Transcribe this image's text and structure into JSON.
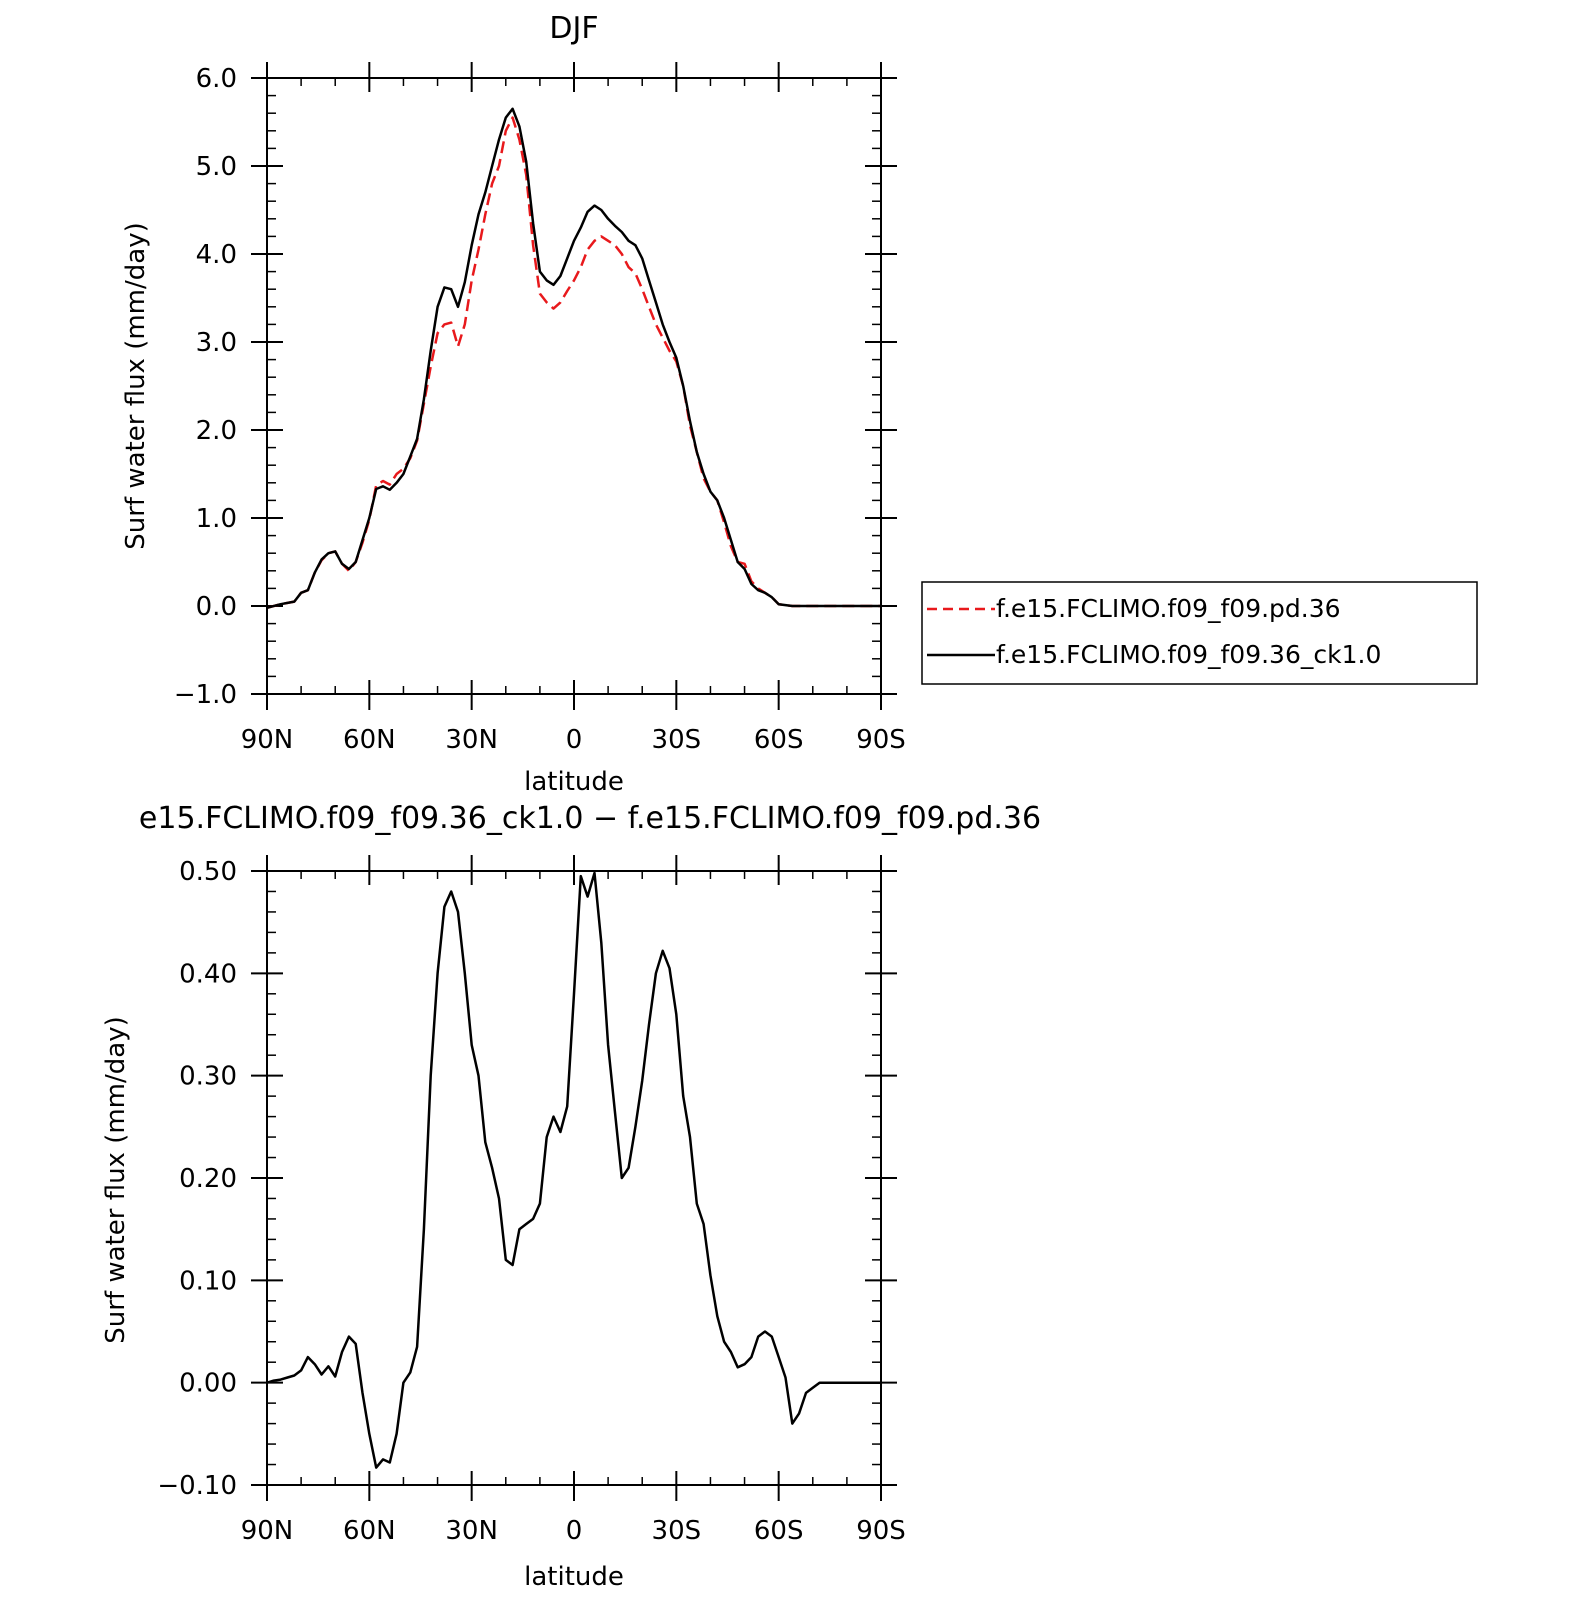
{
  "chart_data": [
    {
      "type": "line",
      "title": "DJF",
      "xlabel": "latitude",
      "ylabel": "Surf water flux (mm/day)",
      "xlim": [
        90,
        -90
      ],
      "ylim": [
        -1.0,
        6.0
      ],
      "x_ticks": [
        {
          "value": 90,
          "label": "90N"
        },
        {
          "value": 60,
          "label": "60N"
        },
        {
          "value": 30,
          "label": "30N"
        },
        {
          "value": 0,
          "label": "0"
        },
        {
          "value": -30,
          "label": "30S"
        },
        {
          "value": -60,
          "label": "60S"
        },
        {
          "value": -90,
          "label": "90S"
        }
      ],
      "y_ticks": [
        {
          "value": -1.0,
          "label": "−1.0"
        },
        {
          "value": 0.0,
          "label": "0.0"
        },
        {
          "value": 1.0,
          "label": "1.0"
        },
        {
          "value": 2.0,
          "label": "2.0"
        },
        {
          "value": 3.0,
          "label": "3.0"
        },
        {
          "value": 4.0,
          "label": "4.0"
        },
        {
          "value": 5.0,
          "label": "5.0"
        },
        {
          "value": 6.0,
          "label": "6.0"
        }
      ],
      "legend_placement": "right",
      "series": [
        {
          "name": "f.e15.FCLIMO.f09_f09.pd.36",
          "color": "#e8191c",
          "dash": "dashed",
          "points": [
            [
              90,
              -0.02
            ],
            [
              86,
              0.02
            ],
            [
              82,
              0.05
            ],
            [
              80,
              0.15
            ],
            [
              78,
              0.18
            ],
            [
              76,
              0.38
            ],
            [
              74,
              0.52
            ],
            [
              72,
              0.6
            ],
            [
              70,
              0.62
            ],
            [
              68,
              0.48
            ],
            [
              66,
              0.4
            ],
            [
              64,
              0.5
            ],
            [
              62,
              0.72
            ],
            [
              60,
              0.98
            ],
            [
              58,
              1.37
            ],
            [
              56,
              1.42
            ],
            [
              54,
              1.38
            ],
            [
              52,
              1.5
            ],
            [
              50,
              1.56
            ],
            [
              48,
              1.68
            ],
            [
              46,
              1.88
            ],
            [
              44,
              2.3
            ],
            [
              42,
              2.72
            ],
            [
              40,
              3.1
            ],
            [
              38,
              3.2
            ],
            [
              36,
              3.22
            ],
            [
              34,
              2.95
            ],
            [
              32,
              3.2
            ],
            [
              30,
              3.7
            ],
            [
              28,
              4.05
            ],
            [
              26,
              4.45
            ],
            [
              24,
              4.8
            ],
            [
              22,
              5.0
            ],
            [
              20,
              5.4
            ],
            [
              18,
              5.55
            ],
            [
              16,
              5.3
            ],
            [
              14,
              4.9
            ],
            [
              12,
              4.1
            ],
            [
              10,
              3.55
            ],
            [
              8,
              3.45
            ],
            [
              6,
              3.38
            ],
            [
              4,
              3.45
            ],
            [
              2,
              3.58
            ],
            [
              0,
              3.7
            ],
            [
              -2,
              3.85
            ],
            [
              -4,
              4.05
            ],
            [
              -6,
              4.15
            ],
            [
              -8,
              4.2
            ],
            [
              -10,
              4.15
            ],
            [
              -12,
              4.1
            ],
            [
              -14,
              4.0
            ],
            [
              -16,
              3.85
            ],
            [
              -18,
              3.78
            ],
            [
              -20,
              3.6
            ],
            [
              -22,
              3.4
            ],
            [
              -24,
              3.2
            ],
            [
              -26,
              3.05
            ],
            [
              -28,
              2.9
            ],
            [
              -30,
              2.78
            ],
            [
              -32,
              2.5
            ],
            [
              -34,
              2.05
            ],
            [
              -36,
              1.75
            ],
            [
              -38,
              1.45
            ],
            [
              -40,
              1.3
            ],
            [
              -42,
              1.2
            ],
            [
              -44,
              0.95
            ],
            [
              -46,
              0.68
            ],
            [
              -48,
              0.5
            ],
            [
              -50,
              0.48
            ],
            [
              -52,
              0.28
            ],
            [
              -54,
              0.2
            ],
            [
              -56,
              0.15
            ],
            [
              -58,
              0.1
            ],
            [
              -60,
              0.02
            ],
            [
              -64,
              0.0
            ],
            [
              -70,
              0.0
            ],
            [
              -80,
              0.0
            ],
            [
              -90,
              0.0
            ]
          ]
        },
        {
          "name": "f.e15.FCLIMO.f09_f09.36_ck1.0",
          "color": "#000000",
          "dash": "solid",
          "points": [
            [
              90,
              -0.02
            ],
            [
              86,
              0.02
            ],
            [
              82,
              0.05
            ],
            [
              80,
              0.15
            ],
            [
              78,
              0.18
            ],
            [
              76,
              0.38
            ],
            [
              74,
              0.53
            ],
            [
              72,
              0.6
            ],
            [
              70,
              0.62
            ],
            [
              68,
              0.48
            ],
            [
              66,
              0.42
            ],
            [
              64,
              0.5
            ],
            [
              62,
              0.75
            ],
            [
              60,
              1.0
            ],
            [
              58,
              1.33
            ],
            [
              56,
              1.36
            ],
            [
              54,
              1.32
            ],
            [
              52,
              1.4
            ],
            [
              50,
              1.5
            ],
            [
              48,
              1.7
            ],
            [
              46,
              1.9
            ],
            [
              44,
              2.35
            ],
            [
              42,
              2.9
            ],
            [
              40,
              3.4
            ],
            [
              38,
              3.62
            ],
            [
              36,
              3.6
            ],
            [
              34,
              3.4
            ],
            [
              32,
              3.68
            ],
            [
              30,
              4.1
            ],
            [
              28,
              4.45
            ],
            [
              26,
              4.7
            ],
            [
              24,
              5.0
            ],
            [
              22,
              5.3
            ],
            [
              20,
              5.55
            ],
            [
              18,
              5.65
            ],
            [
              16,
              5.45
            ],
            [
              14,
              5.05
            ],
            [
              12,
              4.35
            ],
            [
              10,
              3.8
            ],
            [
              8,
              3.7
            ],
            [
              6,
              3.65
            ],
            [
              4,
              3.75
            ],
            [
              2,
              3.95
            ],
            [
              0,
              4.15
            ],
            [
              -2,
              4.3
            ],
            [
              -4,
              4.48
            ],
            [
              -6,
              4.55
            ],
            [
              -8,
              4.5
            ],
            [
              -10,
              4.4
            ],
            [
              -12,
              4.32
            ],
            [
              -14,
              4.25
            ],
            [
              -16,
              4.15
            ],
            [
              -18,
              4.1
            ],
            [
              -20,
              3.95
            ],
            [
              -22,
              3.7
            ],
            [
              -24,
              3.45
            ],
            [
              -26,
              3.2
            ],
            [
              -28,
              3.0
            ],
            [
              -30,
              2.82
            ],
            [
              -32,
              2.5
            ],
            [
              -34,
              2.1
            ],
            [
              -36,
              1.75
            ],
            [
              -38,
              1.5
            ],
            [
              -40,
              1.3
            ],
            [
              -42,
              1.2
            ],
            [
              -44,
              1.0
            ],
            [
              -46,
              0.75
            ],
            [
              -48,
              0.5
            ],
            [
              -50,
              0.42
            ],
            [
              -52,
              0.25
            ],
            [
              -54,
              0.18
            ],
            [
              -56,
              0.15
            ],
            [
              -58,
              0.1
            ],
            [
              -60,
              0.02
            ],
            [
              -64,
              0.0
            ],
            [
              -70,
              0.0
            ],
            [
              -80,
              0.0
            ],
            [
              -90,
              0.0
            ]
          ]
        }
      ]
    },
    {
      "type": "line",
      "title": "e15.FCLIMO.f09_f09.36_ck1.0 − f.e15.FCLIMO.f09_f09.pd.36",
      "xlabel": "latitude",
      "ylabel": "Surf water flux (mm/day)",
      "xlim": [
        90,
        -90
      ],
      "ylim": [
        -0.1,
        0.5
      ],
      "x_ticks": [
        {
          "value": 90,
          "label": "90N"
        },
        {
          "value": 60,
          "label": "60N"
        },
        {
          "value": 30,
          "label": "30N"
        },
        {
          "value": 0,
          "label": "0"
        },
        {
          "value": -30,
          "label": "30S"
        },
        {
          "value": -60,
          "label": "60S"
        },
        {
          "value": -90,
          "label": "90S"
        }
      ],
      "y_ticks": [
        {
          "value": -0.1,
          "label": "−0.10"
        },
        {
          "value": 0.0,
          "label": "0.00"
        },
        {
          "value": 0.1,
          "label": "0.10"
        },
        {
          "value": 0.2,
          "label": "0.20"
        },
        {
          "value": 0.3,
          "label": "0.30"
        },
        {
          "value": 0.4,
          "label": "0.40"
        },
        {
          "value": 0.5,
          "label": "0.50"
        }
      ],
      "series": [
        {
          "color": "#000000",
          "dash": "solid",
          "points": [
            [
              90,
              0.0
            ],
            [
              88,
              0.002
            ],
            [
              86,
              0.003
            ],
            [
              84,
              0.005
            ],
            [
              82,
              0.007
            ],
            [
              80,
              0.012
            ],
            [
              78,
              0.025
            ],
            [
              76,
              0.018
            ],
            [
              74,
              0.008
            ],
            [
              72,
              0.016
            ],
            [
              70,
              0.006
            ],
            [
              68,
              0.03
            ],
            [
              66,
              0.045
            ],
            [
              64,
              0.038
            ],
            [
              62,
              -0.01
            ],
            [
              60,
              -0.05
            ],
            [
              58,
              -0.083
            ],
            [
              56,
              -0.075
            ],
            [
              54,
              -0.078
            ],
            [
              52,
              -0.05
            ],
            [
              50,
              0.0
            ],
            [
              48,
              0.01
            ],
            [
              46,
              0.035
            ],
            [
              44,
              0.15
            ],
            [
              42,
              0.3
            ],
            [
              40,
              0.4
            ],
            [
              38,
              0.465
            ],
            [
              36,
              0.48
            ],
            [
              34,
              0.46
            ],
            [
              32,
              0.4
            ],
            [
              30,
              0.33
            ],
            [
              28,
              0.3
            ],
            [
              26,
              0.235
            ],
            [
              24,
              0.21
            ],
            [
              22,
              0.18
            ],
            [
              20,
              0.12
            ],
            [
              18,
              0.115
            ],
            [
              16,
              0.15
            ],
            [
              14,
              0.155
            ],
            [
              12,
              0.16
            ],
            [
              10,
              0.175
            ],
            [
              8,
              0.24
            ],
            [
              6,
              0.26
            ],
            [
              4,
              0.245
            ],
            [
              2,
              0.27
            ],
            [
              0,
              0.38
            ],
            [
              -2,
              0.495
            ],
            [
              -4,
              0.475
            ],
            [
              -6,
              0.498
            ],
            [
              -8,
              0.43
            ],
            [
              -10,
              0.33
            ],
            [
              -12,
              0.265
            ],
            [
              -14,
              0.2
            ],
            [
              -16,
              0.21
            ],
            [
              -18,
              0.25
            ],
            [
              -20,
              0.295
            ],
            [
              -22,
              0.35
            ],
            [
              -24,
              0.4
            ],
            [
              -26,
              0.422
            ],
            [
              -28,
              0.405
            ],
            [
              -30,
              0.36
            ],
            [
              -32,
              0.28
            ],
            [
              -34,
              0.24
            ],
            [
              -36,
              0.175
            ],
            [
              -38,
              0.155
            ],
            [
              -40,
              0.105
            ],
            [
              -42,
              0.065
            ],
            [
              -44,
              0.04
            ],
            [
              -46,
              0.03
            ],
            [
              -48,
              0.015
            ],
            [
              -50,
              0.018
            ],
            [
              -52,
              0.025
            ],
            [
              -54,
              0.045
            ],
            [
              -56,
              0.05
            ],
            [
              -58,
              0.045
            ],
            [
              -60,
              0.025
            ],
            [
              -62,
              0.005
            ],
            [
              -64,
              -0.04
            ],
            [
              -66,
              -0.03
            ],
            [
              -68,
              -0.01
            ],
            [
              -70,
              -0.005
            ],
            [
              -72,
              0.0
            ],
            [
              -76,
              0.0
            ],
            [
              -80,
              0.0
            ],
            [
              -90,
              0.0
            ]
          ]
        }
      ]
    }
  ]
}
